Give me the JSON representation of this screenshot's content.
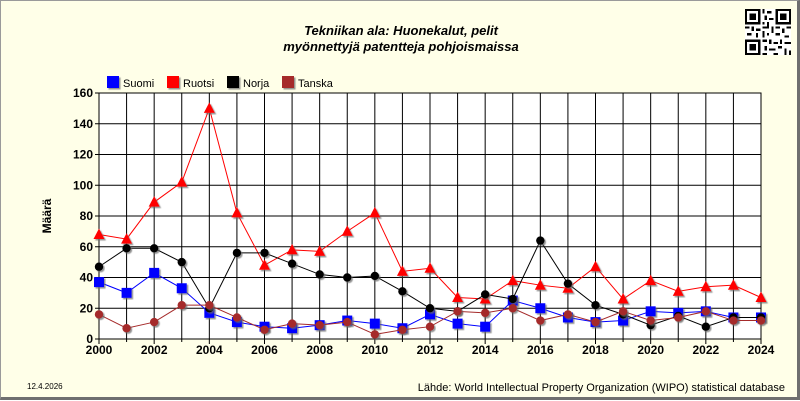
{
  "chart_data": {
    "type": "line",
    "title": "Tekniikan ala: Huonekalut, pelit",
    "subtitle": "myönnettyjä patentteja pohjoismaissa",
    "xlabel": "",
    "ylabel": "Määrä",
    "ylim": [
      0,
      160
    ],
    "yticks": [
      0,
      20,
      40,
      60,
      80,
      100,
      120,
      140,
      160
    ],
    "xlim": [
      2000,
      2024
    ],
    "xticks": [
      2000,
      2002,
      2004,
      2006,
      2008,
      2010,
      2012,
      2014,
      2016,
      2018,
      2020,
      2022,
      2024
    ],
    "grid": true,
    "legend_position": "top-left",
    "x": [
      2000,
      2001,
      2002,
      2003,
      2004,
      2005,
      2006,
      2007,
      2008,
      2009,
      2010,
      2011,
      2012,
      2013,
      2014,
      2015,
      2016,
      2017,
      2018,
      2019,
      2020,
      2021,
      2022,
      2023,
      2024
    ],
    "series": [
      {
        "name": "Suomi",
        "color": "#0000ff",
        "marker": "square",
        "values": [
          37,
          30,
          43,
          33,
          17,
          11,
          8,
          7,
          9,
          12,
          10,
          7,
          16,
          10,
          8,
          25,
          20,
          14,
          11,
          12,
          18,
          17,
          18,
          14,
          14
        ]
      },
      {
        "name": "Ruotsi",
        "color": "#ff0000",
        "marker": "triangle",
        "values": [
          68,
          65,
          89,
          102,
          150,
          82,
          48,
          58,
          57,
          70,
          82,
          44,
          46,
          27,
          26,
          38,
          35,
          33,
          47,
          26,
          38,
          31,
          34,
          35,
          27
        ]
      },
      {
        "name": "Norja",
        "color": "#000000",
        "marker": "circle",
        "values": [
          47,
          59,
          59,
          50,
          20,
          56,
          56,
          49,
          42,
          40,
          41,
          31,
          20,
          18,
          29,
          26,
          64,
          36,
          22,
          16,
          9,
          15,
          8,
          14,
          14
        ]
      },
      {
        "name": "Tanska",
        "color": "#a52a2a",
        "marker": "circle",
        "values": [
          16,
          7,
          11,
          22,
          22,
          14,
          6,
          10,
          9,
          11,
          3,
          6,
          8,
          18,
          17,
          20,
          12,
          16,
          11,
          18,
          12,
          14,
          18,
          12,
          12
        ]
      }
    ]
  },
  "footer": {
    "date": "12.4.2026",
    "source": "Lähde: World Intellectual Property Organization (WIPO) statistical database"
  },
  "qr_icon": "qr-code-icon"
}
